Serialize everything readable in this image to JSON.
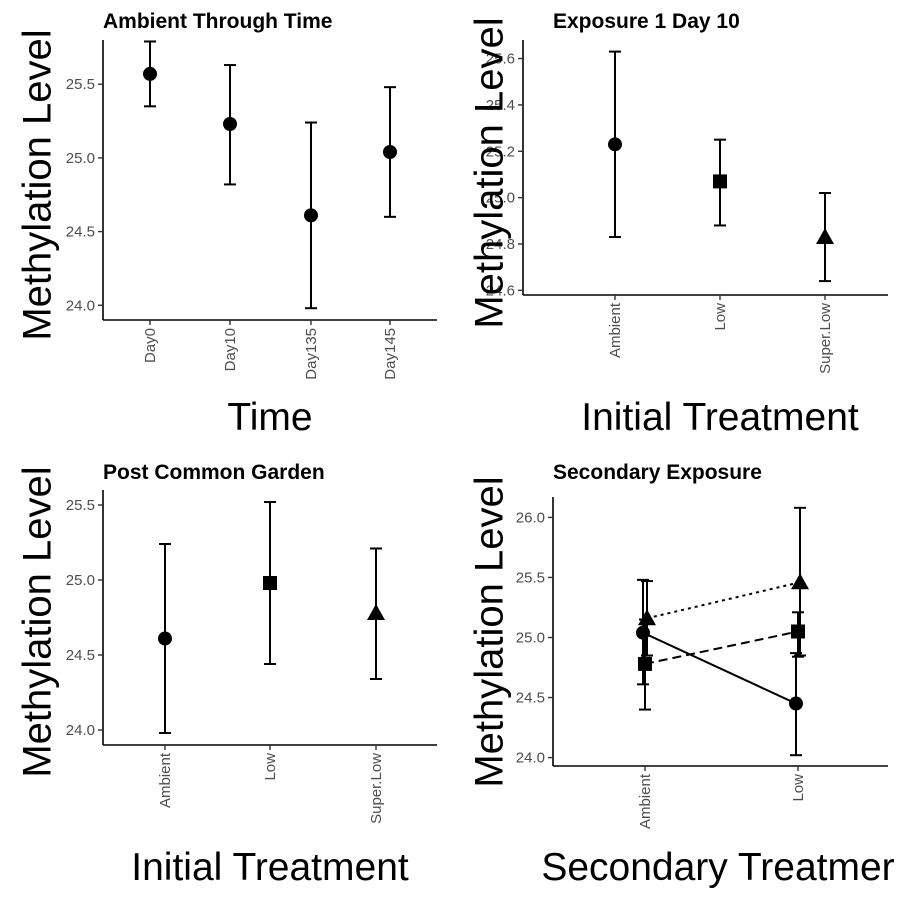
{
  "chart_data": [
    {
      "type": "scatter",
      "title": "Ambient Through Time",
      "xlabel": "Time",
      "ylabel": "Methylation Level",
      "ylim": [
        23.9,
        25.8
      ],
      "yticks": [
        "24.0",
        "24.5",
        "25.0",
        "25.5"
      ],
      "categories": [
        "Day0",
        "Day10",
        "Day135",
        "Day145"
      ],
      "series": [
        {
          "shape": "circle",
          "values": [
            25.57,
            25.23,
            24.61,
            25.04
          ],
          "lower": [
            25.35,
            24.82,
            23.98,
            24.6
          ],
          "upper": [
            25.79,
            25.63,
            25.24,
            25.48
          ]
        }
      ]
    },
    {
      "type": "scatter",
      "title": "Exposure 1 Day 10",
      "xlabel": "Initial Treatment",
      "ylabel": "Methylation Level",
      "ylim": [
        24.58,
        25.68
      ],
      "yticks": [
        "24.6",
        "24.8",
        "25.0",
        "25.2",
        "25.4",
        "25.6"
      ],
      "categories": [
        "Ambient",
        "Low",
        "Super.Low"
      ],
      "series": [
        {
          "shapes": [
            "circle",
            "square",
            "triangle"
          ],
          "values": [
            25.23,
            25.07,
            24.83
          ],
          "lower": [
            24.83,
            24.88,
            24.64
          ],
          "upper": [
            25.63,
            25.25,
            25.02
          ]
        }
      ]
    },
    {
      "type": "scatter",
      "title": "Post Common Garden",
      "xlabel": "Initial Treatment",
      "ylabel": "Methylation Level",
      "ylim": [
        23.9,
        25.6
      ],
      "yticks": [
        "24.0",
        "24.5",
        "25.0",
        "25.5"
      ],
      "categories": [
        "Ambient",
        "Low",
        "Super.Low"
      ],
      "series": [
        {
          "shapes": [
            "circle",
            "square",
            "triangle"
          ],
          "values": [
            24.61,
            24.98,
            24.78
          ],
          "lower": [
            23.98,
            24.44,
            24.34
          ],
          "upper": [
            25.24,
            25.52,
            25.21
          ]
        }
      ]
    },
    {
      "type": "line",
      "title": "Secondary Exposure",
      "xlabel": "Secondary Treatmer",
      "ylabel": "Methylation Level",
      "ylim": [
        23.93,
        26.17
      ],
      "yticks": [
        "24.0",
        "24.5",
        "25.0",
        "25.5",
        "26.0"
      ],
      "categories": [
        "Ambient",
        "Low"
      ],
      "series": [
        {
          "shape": "circle",
          "linetype": "solid",
          "values": [
            25.04,
            24.45
          ],
          "lower": [
            24.61,
            24.02
          ],
          "upper": [
            25.48,
            24.87
          ]
        },
        {
          "shape": "square",
          "linetype": "dashed",
          "values": [
            24.78,
            25.05
          ],
          "lower": [
            24.4,
            24.84
          ],
          "upper": [
            25.15,
            25.21
          ]
        },
        {
          "shape": "triangle",
          "linetype": "dotted",
          "values": [
            25.16,
            25.46
          ],
          "lower": [
            24.85,
            24.85
          ],
          "upper": [
            25.47,
            26.08
          ]
        }
      ]
    }
  ]
}
